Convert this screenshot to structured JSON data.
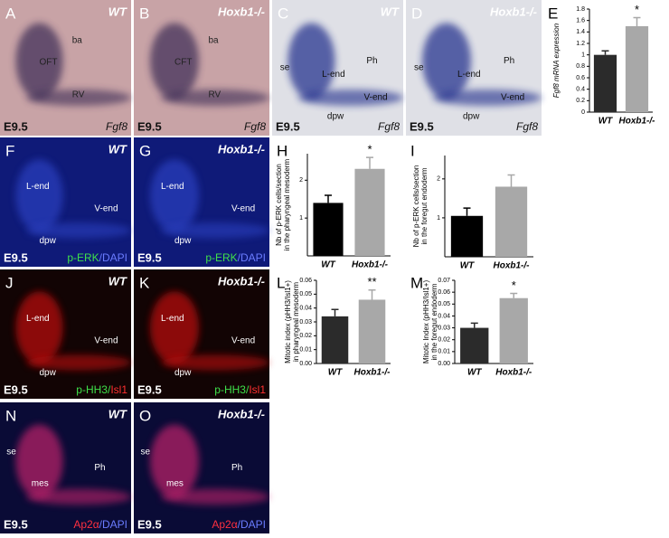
{
  "panels": [
    {
      "letter": "A",
      "genotype": "WT",
      "labels": [
        "ba",
        "OFT",
        "RV"
      ],
      "stage": "E9.5",
      "stain": [
        "Fgf8"
      ]
    },
    {
      "letter": "B",
      "genotype": "Hoxb1-/-",
      "labels": [
        "ba",
        "CFT",
        "RV"
      ],
      "stage": "E9.5",
      "stain": [
        "Fgf8"
      ]
    },
    {
      "letter": "C",
      "genotype": "WT",
      "labels": [
        "se",
        "L-end",
        "Ph",
        "V-end",
        "dpw"
      ],
      "stage": "E9.5",
      "stain": [
        "Fgf8"
      ]
    },
    {
      "letter": "D",
      "genotype": "Hoxb1-/-",
      "labels": [
        "se",
        "L-end",
        "Ph",
        "V-end",
        "dpw"
      ],
      "stage": "E9.5",
      "stain": [
        "Fgf8"
      ]
    },
    {
      "letter": "F",
      "genotype": "WT",
      "labels": [
        "L-end",
        "V-end",
        "dpw"
      ],
      "stage": "E9.5",
      "stain": [
        "p-ERK",
        "/DAPI"
      ]
    },
    {
      "letter": "G",
      "genotype": "Hoxb1-/-",
      "labels": [
        "L-end",
        "V-end",
        "dpw"
      ],
      "stage": "E9.5",
      "stain": [
        "p-ERK",
        "/DAPI"
      ]
    },
    {
      "letter": "J",
      "genotype": "WT",
      "labels": [
        "L-end",
        "V-end",
        "dpw"
      ],
      "stage": "E9.5",
      "stain": [
        "p-HH3/",
        "Isl1"
      ]
    },
    {
      "letter": "K",
      "genotype": "Hoxb1-/-",
      "labels": [
        "L-end",
        "V-end",
        "dpw"
      ],
      "stage": "E9.5",
      "stain": [
        "p-HH3/",
        "Isl1"
      ]
    },
    {
      "letter": "N",
      "genotype": "WT",
      "labels": [
        "se",
        "mes",
        "Ph"
      ],
      "stage": "E9.5",
      "stain": [
        "Ap2α",
        "/DAPI"
      ]
    },
    {
      "letter": "O",
      "genotype": "Hoxb1-/-",
      "labels": [
        "se",
        "mes",
        "Ph"
      ],
      "stage": "E9.5",
      "stain": [
        "Ap2α",
        "/DAPI"
      ]
    }
  ],
  "chart_data": [
    {
      "type": "bar",
      "letter": "E",
      "ylabel": [
        "Fgf8 mRNA expression"
      ],
      "categories": [
        "WT",
        "Hoxb1-/-"
      ],
      "values": [
        1.0,
        1.5
      ],
      "errors": [
        0.07,
        0.15
      ],
      "value_annotations": [
        null,
        "*"
      ],
      "colors": [
        "#2b2b2b",
        "#a8a8a8"
      ],
      "ylim": [
        0,
        1.8
      ],
      "yticks": [
        0,
        0.2,
        0.4,
        0.6,
        0.8,
        1,
        1.2,
        1.4,
        1.6,
        1.8
      ]
    },
    {
      "type": "bar",
      "letter": "H",
      "ylabel": [
        "Nb of p-ERK cells/section",
        "in the pharyngeal mesoderm"
      ],
      "categories": [
        "WT",
        "Hoxb1-/-"
      ],
      "values": [
        1.4,
        2.3
      ],
      "errors": [
        0.2,
        0.3
      ],
      "value_annotations": [
        null,
        "*"
      ],
      "colors": [
        "#000000",
        "#a8a8a8"
      ],
      "ylim": [
        0,
        2.7
      ],
      "yticks": [
        1,
        2
      ]
    },
    {
      "type": "bar",
      "letter": "I",
      "ylabel": [
        "Nb of p-ERK cells/section",
        "in the foregut endoderm"
      ],
      "categories": [
        "WT",
        "Hoxb1-/-"
      ],
      "values": [
        1.05,
        1.8
      ],
      "errors": [
        0.2,
        0.3
      ],
      "colors": [
        "#000000",
        "#a8a8a8"
      ],
      "ylim": [
        0,
        2.6
      ],
      "yticks": [
        1,
        2
      ]
    },
    {
      "type": "bar",
      "letter": "L",
      "ylabel": [
        "Mitotic index (pHH3/Isl1+)",
        "in pharyngeal mesoderm"
      ],
      "categories": [
        "WT",
        "Hoxb1-/-"
      ],
      "values": [
        0.034,
        0.046
      ],
      "errors": [
        0.005,
        0.007
      ],
      "value_annotations": [
        null,
        "**"
      ],
      "colors": [
        "#2b2b2b",
        "#a8a8a8"
      ],
      "ylim": [
        0,
        0.06
      ],
      "yticks": [
        {
          "value": 0,
          "label": "0.00"
        },
        0.01,
        0.02,
        0.03,
        0.04,
        0.05,
        0.06
      ]
    },
    {
      "type": "bar",
      "letter": "M",
      "ylabel": [
        "Mitotic Index (pHH3/Isl1+)",
        "in the foregut endoderm"
      ],
      "categories": [
        "WT",
        "Hoxb1-/-"
      ],
      "values": [
        0.03,
        0.055
      ],
      "errors": [
        0.004,
        0.004
      ],
      "value_annotations": [
        null,
        "*"
      ],
      "colors": [
        "#2b2b2b",
        "#a8a8a8"
      ],
      "ylim": [
        0,
        0.07
      ],
      "yticks": [
        {
          "value": 0,
          "label": "0.00"
        },
        0.01,
        0.02,
        0.03,
        0.04,
        0.05,
        0.06,
        0.07
      ]
    }
  ]
}
